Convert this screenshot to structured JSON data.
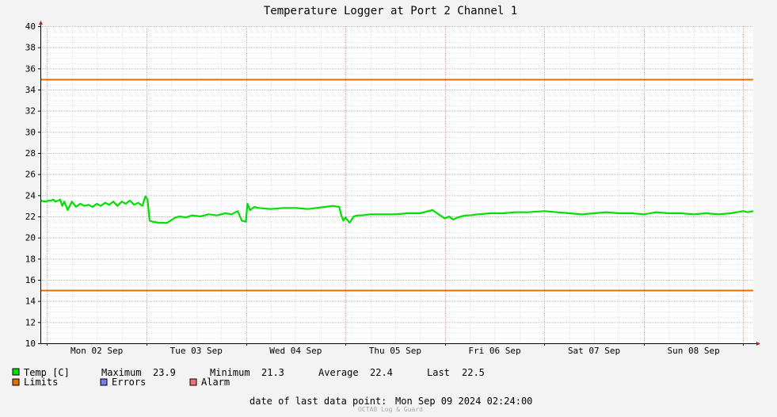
{
  "chart_data": {
    "type": "line",
    "title": "Temperature Logger at Port 2 Channel 1",
    "ylim": [
      10,
      40
    ],
    "y_ticks": [
      10,
      12,
      14,
      16,
      18,
      20,
      22,
      24,
      26,
      28,
      30,
      32,
      34,
      36,
      38,
      40
    ],
    "x_range": [
      "2024-09-01 22:24",
      "2024-09-09 02:24"
    ],
    "x_tick_labels": [
      "Mon 02 Sep",
      "Tue 03 Sep",
      "Wed 04 Sep",
      "Thu 05 Sep",
      "Fri 06 Sep",
      "Sat 07 Sep",
      "Sun 08 Sep"
    ],
    "grid": true,
    "series": [
      {
        "name": "Temp [C]",
        "color": "#00e000",
        "x": [
          "2024-09-01 22:24",
          "2024-09-01 23:30",
          "2024-09-02 00:30",
          "2024-09-02 01:00",
          "2024-09-02 01:30",
          "2024-09-02 02:00",
          "2024-09-02 02:45",
          "2024-09-02 03:10",
          "2024-09-02 03:40",
          "2024-09-02 04:10",
          "2024-09-02 05:00",
          "2024-09-02 06:00",
          "2024-09-02 07:00",
          "2024-09-02 08:00",
          "2024-09-02 09:00",
          "2024-09-02 10:00",
          "2024-09-02 11:00",
          "2024-09-02 12:00",
          "2024-09-02 13:00",
          "2024-09-02 14:00",
          "2024-09-02 15:00",
          "2024-09-02 16:00",
          "2024-09-02 17:00",
          "2024-09-02 18:00",
          "2024-09-02 19:00",
          "2024-09-02 20:00",
          "2024-09-02 21:00",
          "2024-09-02 22:00",
          "2024-09-02 23:00",
          "2024-09-02 23:45",
          "2024-09-03 00:15",
          "2024-09-03 00:45",
          "2024-09-03 01:30",
          "2024-09-03 03:00",
          "2024-09-03 05:00",
          "2024-09-03 07:00",
          "2024-09-03 08:00",
          "2024-09-03 09:30",
          "2024-09-03 11:00",
          "2024-09-03 13:00",
          "2024-09-03 15:00",
          "2024-09-03 17:00",
          "2024-09-03 19:00",
          "2024-09-03 20:30",
          "2024-09-03 22:00",
          "2024-09-03 23:00",
          "2024-09-04 00:00",
          "2024-09-04 00:20",
          "2024-09-04 01:00",
          "2024-09-04 02:00",
          "2024-09-04 03:00",
          "2024-09-04 06:00",
          "2024-09-04 09:00",
          "2024-09-04 12:00",
          "2024-09-04 15:00",
          "2024-09-04 17:00",
          "2024-09-04 19:00",
          "2024-09-04 21:00",
          "2024-09-04 22:30",
          "2024-09-04 23:00",
          "2024-09-04 23:30",
          "2024-09-05 00:00",
          "2024-09-05 01:00",
          "2024-09-05 02:00",
          "2024-09-05 03:00",
          "2024-09-05 04:00",
          "2024-09-05 06:00",
          "2024-09-05 09:00",
          "2024-09-05 12:00",
          "2024-09-05 15:00",
          "2024-09-05 18:00",
          "2024-09-05 21:00",
          "2024-09-06 00:00",
          "2024-09-06 01:00",
          "2024-09-06 02:00",
          "2024-09-06 03:00",
          "2024-09-06 04:00",
          "2024-09-06 05:00",
          "2024-09-06 06:00",
          "2024-09-06 08:00",
          "2024-09-06 11:00",
          "2024-09-06 14:00",
          "2024-09-06 17:00",
          "2024-09-06 20:00",
          "2024-09-07 00:00",
          "2024-09-07 03:00",
          "2024-09-07 06:00",
          "2024-09-07 09:00",
          "2024-09-07 12:00",
          "2024-09-07 15:00",
          "2024-09-07 18:00",
          "2024-09-07 21:00",
          "2024-09-08 00:00",
          "2024-09-08 03:00",
          "2024-09-08 06:00",
          "2024-09-08 09:00",
          "2024-09-08 12:00",
          "2024-09-08 15:00",
          "2024-09-08 18:00",
          "2024-09-08 21:00",
          "2024-09-09 00:00",
          "2024-09-09 01:00",
          "2024-09-09 02:24"
        ],
        "y": [
          23.5,
          23.4,
          23.5,
          23.5,
          23.6,
          23.4,
          23.5,
          23.6,
          23.0,
          23.4,
          22.6,
          23.4,
          22.9,
          23.2,
          23.0,
          23.1,
          22.9,
          23.2,
          23.0,
          23.3,
          23.1,
          23.4,
          23.0,
          23.4,
          23.2,
          23.5,
          23.1,
          23.3,
          23.0,
          23.9,
          23.6,
          21.6,
          21.5,
          21.4,
          21.4,
          21.9,
          22.0,
          21.9,
          22.1,
          22.0,
          22.2,
          22.1,
          22.3,
          22.2,
          22.5,
          21.6,
          21.5,
          23.2,
          22.6,
          22.9,
          22.8,
          22.7,
          22.8,
          22.8,
          22.7,
          22.8,
          22.9,
          23.0,
          22.9,
          22.1,
          21.6,
          21.9,
          21.4,
          22.0,
          22.1,
          22.1,
          22.2,
          22.2,
          22.2,
          22.3,
          22.3,
          22.6,
          21.8,
          22.0,
          21.7,
          21.9,
          22.0,
          22.1,
          22.1,
          22.2,
          22.3,
          22.3,
          22.4,
          22.4,
          22.5,
          22.4,
          22.3,
          22.2,
          22.3,
          22.4,
          22.3,
          22.3,
          22.2,
          22.4,
          22.3,
          22.3,
          22.2,
          22.3,
          22.2,
          22.3,
          22.5,
          22.4,
          22.5
        ]
      },
      {
        "name": "Limits",
        "color": "#e07000",
        "lines": [
          35,
          15
        ]
      },
      {
        "name": "Errors",
        "color": "#6f7fe6"
      },
      {
        "name": "Alarm",
        "color": "#f07070"
      }
    ],
    "stats": {
      "maximum_label": "Maximum",
      "maximum": "23.9",
      "minimum_label": "Minimum",
      "minimum": "21.3",
      "average_label": "Average",
      "average": "22.4",
      "last_label": "Last",
      "last": "22.5"
    },
    "footer": {
      "last_point_label": "date of last data point:",
      "last_point_value": "Mon Sep 09 2024 02:24:00",
      "credit": "OCTA8 Log & Guard"
    }
  }
}
